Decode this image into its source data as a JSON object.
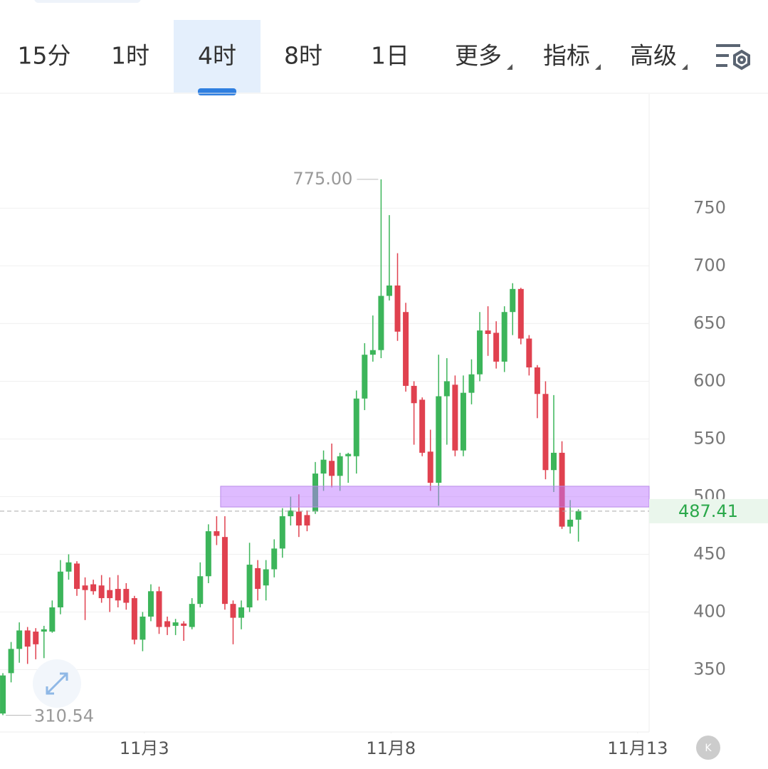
{
  "tabs": [
    "15分",
    "1时",
    "4时",
    "8时",
    "1日",
    "更多",
    "指标",
    "高级"
  ],
  "active_tab": 2,
  "chart_data": {
    "type": "candlestick",
    "open": [
      312,
      347,
      368,
      384,
      383,
      383,
      383,
      404,
      435,
      442,
      423,
      424,
      423,
      419,
      420,
      420,
      412,
      376,
      396,
      418,
      392,
      388,
      390,
      387,
      407,
      431,
      470,
      465,
      407,
      395,
      404,
      438,
      423,
      437,
      455,
      483,
      487,
      484,
      487,
      520,
      531,
      518,
      535,
      535,
      585,
      623,
      627,
      674,
      683,
      660,
      596,
      584,
      539,
      512,
      587,
      597,
      540,
      590,
      606,
      644,
      642,
      617,
      660,
      680,
      637,
      612,
      589,
      523,
      538,
      474,
      480
    ],
    "high": [
      347,
      374,
      391,
      387,
      386,
      388,
      410,
      445,
      450,
      444,
      430,
      428,
      432,
      430,
      432,
      425,
      414,
      400,
      424,
      422,
      396,
      394,
      392,
      412,
      443,
      476,
      483,
      483,
      410,
      410,
      460,
      445,
      445,
      463,
      490,
      500,
      502,
      488,
      530,
      540,
      546,
      538,
      538,
      592,
      633,
      657,
      775,
      744,
      711,
      668,
      600,
      586,
      558,
      623,
      620,
      605,
      605,
      619,
      660,
      665,
      652,
      665,
      685,
      681,
      640,
      614,
      600,
      588,
      548,
      497,
      489
    ],
    "low": [
      310.54,
      339,
      356,
      355,
      359,
      360,
      382,
      398,
      428,
      414,
      393,
      415,
      408,
      400,
      404,
      402,
      372,
      366,
      392,
      381,
      380,
      380,
      375,
      385,
      404,
      425,
      458,
      402,
      372,
      385,
      400,
      410,
      410,
      430,
      447,
      475,
      465,
      470,
      485,
      505,
      508,
      505,
      512,
      520,
      575,
      617,
      620,
      670,
      635,
      591,
      545,
      535,
      505,
      492,
      545,
      535,
      535,
      580,
      600,
      622,
      611,
      608,
      640,
      632,
      605,
      568,
      515,
      504,
      472,
      468,
      461
    ],
    "close": [
      345,
      368,
      384,
      370,
      372,
      385,
      404,
      435,
      443,
      420,
      419,
      418,
      412,
      412,
      410,
      408,
      376,
      396,
      418,
      387,
      387,
      391,
      388,
      407,
      431,
      470,
      466,
      407,
      395,
      404,
      441,
      420,
      437,
      455,
      483,
      488,
      475,
      475,
      520,
      532,
      518,
      535,
      537,
      585,
      623,
      627,
      674,
      683,
      643,
      596,
      581,
      538,
      512,
      587,
      600,
      540,
      590,
      606,
      644,
      641,
      617,
      660,
      680,
      637,
      612,
      589,
      523,
      538,
      474,
      480,
      487.41
    ],
    "up_color": "#3cb55a",
    "down_color": "#e0414f",
    "xlim": [
      -0.35,
      78.6
    ],
    "xticks": [
      {
        "value": 17.2,
        "label": "11月3"
      },
      {
        "value": 47.2,
        "label": "11月8"
      },
      {
        "value": 77.2,
        "label": "11月13"
      }
    ],
    "ylim": [
      296,
      849
    ],
    "yticks": [
      350,
      400,
      450,
      500,
      550,
      600,
      650,
      700,
      750
    ],
    "grid": true,
    "max_label": {
      "value": 775,
      "label": "775.00"
    },
    "min_label": {
      "value": 310.54,
      "label": "310.54"
    },
    "last_price": {
      "value": 487.41,
      "label": "487.41"
    },
    "band": [
      491,
      509
    ]
  }
}
